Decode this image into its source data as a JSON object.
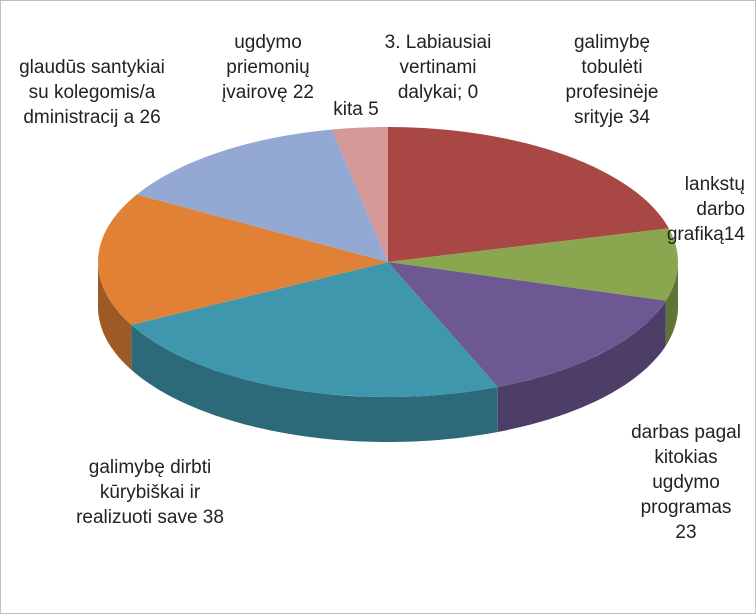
{
  "chart_data": {
    "type": "pie3d",
    "categories": [
      "3. Labiausiai vertinami dalykai;",
      "galimybę tobulėti profesinėje srityje",
      "lankstų darbo grafiką",
      "darbas pagal kitokias ugdymo programas",
      "galimybę dirbti kūrybiškai ir realizuoti save",
      "glaudūs santykiai su kolegomis/a dministracij a",
      "ugdymo priemonių įvairovę",
      "kita"
    ],
    "values": [
      0,
      34,
      14,
      23,
      38,
      26,
      22,
      5
    ],
    "colors": [
      "#4f81bd",
      "#a94745",
      "#8aa64f",
      "#6e5893",
      "#3f97ae",
      "#e08136",
      "#93a9d3",
      "#d49896"
    ]
  }
}
